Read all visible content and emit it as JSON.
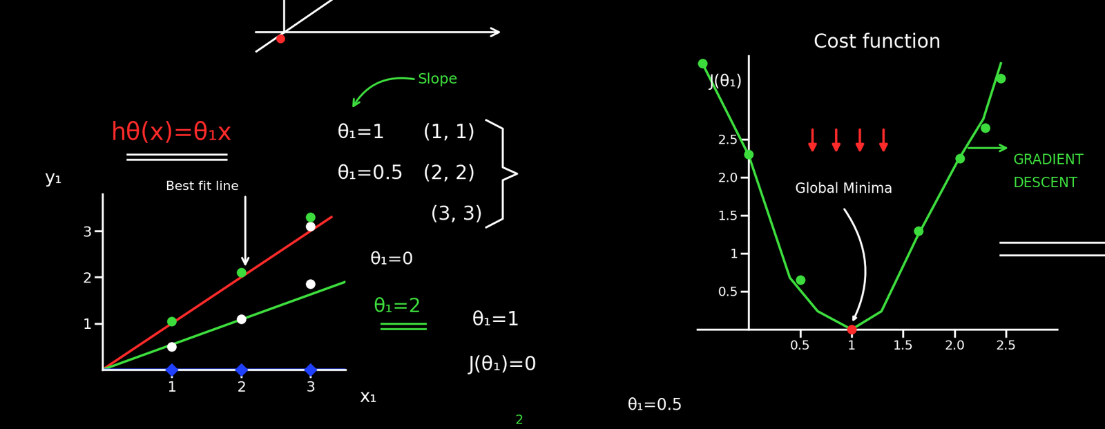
{
  "chart_data": [
    {
      "type": "line",
      "x_label": "x₁",
      "y_label": "y₁",
      "xlim": [
        0,
        3.5
      ],
      "ylim": [
        0,
        3.8
      ],
      "xticks": [
        1,
        2,
        3
      ],
      "yticks": [
        1,
        2,
        3
      ],
      "series": [
        {
          "type": "line",
          "color": "#ff2a2a",
          "x": [
            0,
            3.3
          ],
          "values": [
            0,
            3.3
          ]
        },
        {
          "type": "line",
          "color": "#3ddc3d",
          "x": [
            0,
            3.5
          ],
          "values": [
            0,
            1.9
          ]
        },
        {
          "type": "line",
          "color": "#2040ff",
          "x": [
            0,
            3.5
          ],
          "values": [
            0,
            0
          ]
        },
        {
          "type": "scatter",
          "color": "#2040ff",
          "marker": "D",
          "x": [
            1,
            2,
            3
          ],
          "values": [
            0,
            0,
            0
          ]
        },
        {
          "type": "scatter",
          "color": "#ffffff",
          "marker": "o",
          "x": [
            1,
            2,
            3,
            3
          ],
          "values": [
            0.5,
            1.1,
            1.85,
            3.1
          ]
        },
        {
          "type": "scatter",
          "color": "#3ddc3d",
          "marker": "o",
          "x": [
            1,
            2,
            3
          ],
          "values": [
            1.05,
            2.1,
            3.3
          ]
        }
      ],
      "annotations": [
        {
          "text": "hθ(x)=θ₁x",
          "color": "#ff2a2a"
        },
        {
          "text": "Best fit line",
          "color": "#ffffff"
        },
        {
          "text": "Slope",
          "color": "#3ddc3d"
        },
        {
          "text": "θ₁=1",
          "color": "#ffffff"
        },
        {
          "text": "θ₁=0.5",
          "color": "#ffffff"
        },
        {
          "text": "(1, 1)",
          "color": "#ffffff"
        },
        {
          "text": "(2, 2)",
          "color": "#ffffff"
        },
        {
          "text": "(3, 3)",
          "color": "#ffffff"
        },
        {
          "text": "θ₁=0",
          "color": "#ffffff"
        },
        {
          "text": "θ₁=2",
          "color": "#3ddc3d"
        },
        {
          "text": "θ₁=1",
          "color": "#ffffff"
        },
        {
          "text": "J(θ₁)=0",
          "color": "#ffffff"
        },
        {
          "text": "θ₁=0.5",
          "color": "#ffffff"
        },
        {
          "text": "2",
          "color": "#3ddc3d"
        }
      ]
    },
    {
      "type": "line",
      "title": "Cost function",
      "y_label": "J(θ₁)",
      "xlim": [
        -0.5,
        3.0
      ],
      "ylim": [
        0,
        3.6
      ],
      "xticks": [
        0.5,
        1,
        1.5,
        2.0,
        2.5
      ],
      "yticks": [
        0.5,
        1,
        1.5,
        2.0,
        2.5
      ],
      "series": [
        {
          "type": "line",
          "color": "#3ddc3d",
          "x": [
            -0.45,
            0,
            0.4,
            0.67,
            1.0,
            1.29,
            1.63,
            2.04,
            2.28,
            2.45
          ],
          "values": [
            3.5,
            2.29,
            0.68,
            0.24,
            0,
            0.24,
            1.2,
            2.24,
            2.77,
            3.5
          ]
        },
        {
          "type": "scatter",
          "color": "#3ddc3d",
          "marker": "o",
          "x": [
            -0.45,
            0,
            0.5,
            1.65,
            2.05,
            2.3,
            2.45
          ],
          "values": [
            3.5,
            2.3,
            0.65,
            1.3,
            2.25,
            2.65,
            3.3
          ]
        },
        {
          "type": "scatter",
          "color": "#ff2a2a",
          "marker": "o",
          "x": [
            1.0
          ],
          "values": [
            0
          ]
        }
      ],
      "annotations": [
        {
          "text": "Global Minima",
          "color": "#ffffff"
        },
        {
          "text": "GRADIENT\nDESCENT",
          "color": "#3ddc3d"
        }
      ]
    }
  ]
}
